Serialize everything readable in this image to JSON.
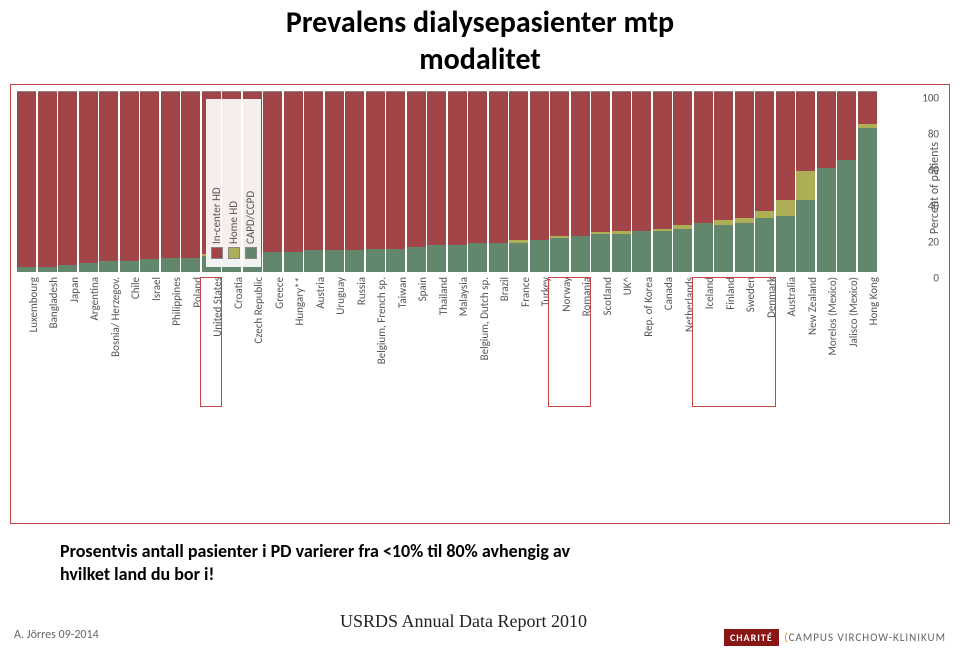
{
  "title_line1": "Prevalens dialysepasienter mtp",
  "title_line2": "modalitet",
  "caption_line1": "Prosentvis antall pasienter i PD varierer fra <10% til 80% avhengig av",
  "caption_line2": "hvilket land du bor i!",
  "source": "USRDS Annual Data Report 2010",
  "author": "A. Jörres 09-2014",
  "logo_charite": "CHARITÉ",
  "logo_campus": "CAMPUS",
  "logo_virchow": "VIRCHOW-KLINIKUM",
  "colors": {
    "in_center": "#a14548",
    "home_hd": "#aeae56",
    "capd": "#63876d",
    "bg": "#ffffff",
    "frame": "#c74646",
    "text": "#555555"
  },
  "legend": [
    {
      "key": "in_center",
      "label": "In-center HD"
    },
    {
      "key": "home_hd",
      "label": "Home HD"
    },
    {
      "key": "capd",
      "label": "CAPD/CCPD"
    }
  ],
  "yaxis": {
    "label": "Percent of patients",
    "min": 0,
    "max": 100,
    "ticks": [
      0,
      20,
      40,
      60,
      80,
      100
    ]
  },
  "countries": [
    {
      "name": "Luxembourg",
      "in_center": 97,
      "home_hd": 0,
      "capd": 3
    },
    {
      "name": "Bangladesh",
      "in_center": 97,
      "home_hd": 0,
      "capd": 3
    },
    {
      "name": "Japan",
      "in_center": 96,
      "home_hd": 0,
      "capd": 4
    },
    {
      "name": "Argentina",
      "in_center": 95,
      "home_hd": 0,
      "capd": 5
    },
    {
      "name": "Bosnia/ Herzegov.",
      "in_center": 94,
      "home_hd": 0,
      "capd": 6
    },
    {
      "name": "Chile",
      "in_center": 94,
      "home_hd": 0,
      "capd": 6
    },
    {
      "name": "Israel",
      "in_center": 93,
      "home_hd": 0,
      "capd": 7
    },
    {
      "name": "Philippines",
      "in_center": 92,
      "home_hd": 0,
      "capd": 8
    },
    {
      "name": "Poland",
      "in_center": 92,
      "home_hd": 0,
      "capd": 8
    },
    {
      "name": "United States",
      "in_center": 90,
      "home_hd": 1,
      "capd": 9
    },
    {
      "name": "Croatia",
      "in_center": 90,
      "home_hd": 0,
      "capd": 10
    },
    {
      "name": "Czech Republic",
      "in_center": 90,
      "home_hd": 0,
      "capd": 10
    },
    {
      "name": "Greece",
      "in_center": 89,
      "home_hd": 0,
      "capd": 11
    },
    {
      "name": "Hungary**",
      "in_center": 89,
      "home_hd": 0,
      "capd": 11
    },
    {
      "name": "Austria",
      "in_center": 88,
      "home_hd": 0,
      "capd": 12
    },
    {
      "name": "Uruguay",
      "in_center": 88,
      "home_hd": 0,
      "capd": 12
    },
    {
      "name": "Russia",
      "in_center": 88,
      "home_hd": 0,
      "capd": 12
    },
    {
      "name": "Belgium, French sp.",
      "in_center": 87,
      "home_hd": 0,
      "capd": 13
    },
    {
      "name": "Taiwan",
      "in_center": 87,
      "home_hd": 0,
      "capd": 13
    },
    {
      "name": "Spain",
      "in_center": 86,
      "home_hd": 0,
      "capd": 14
    },
    {
      "name": "Thailand",
      "in_center": 85,
      "home_hd": 0,
      "capd": 15
    },
    {
      "name": "Malaysia",
      "in_center": 85,
      "home_hd": 0,
      "capd": 15
    },
    {
      "name": "Belgium, Dutch sp.",
      "in_center": 84,
      "home_hd": 0,
      "capd": 16
    },
    {
      "name": "Brazil",
      "in_center": 84,
      "home_hd": 0,
      "capd": 16
    },
    {
      "name": "France",
      "in_center": 82,
      "home_hd": 2,
      "capd": 16
    },
    {
      "name": "Turkey",
      "in_center": 82,
      "home_hd": 0,
      "capd": 18
    },
    {
      "name": "Norway",
      "in_center": 80,
      "home_hd": 1,
      "capd": 19
    },
    {
      "name": "Romania",
      "in_center": 80,
      "home_hd": 0,
      "capd": 20
    },
    {
      "name": "Scotland",
      "in_center": 78,
      "home_hd": 1,
      "capd": 21
    },
    {
      "name": "UK^",
      "in_center": 77,
      "home_hd": 2,
      "capd": 21
    },
    {
      "name": "Rep. of Korea",
      "in_center": 77,
      "home_hd": 0,
      "capd": 23
    },
    {
      "name": "Canada",
      "in_center": 76,
      "home_hd": 1,
      "capd": 23
    },
    {
      "name": "Netherlands",
      "in_center": 74,
      "home_hd": 2,
      "capd": 24
    },
    {
      "name": "Iceland",
      "in_center": 73,
      "home_hd": 0,
      "capd": 27
    },
    {
      "name": "Finland",
      "in_center": 71,
      "home_hd": 3,
      "capd": 26
    },
    {
      "name": "Sweden",
      "in_center": 70,
      "home_hd": 3,
      "capd": 27
    },
    {
      "name": "Denmark",
      "in_center": 66,
      "home_hd": 4,
      "capd": 30
    },
    {
      "name": "Australia",
      "in_center": 60,
      "home_hd": 9,
      "capd": 31
    },
    {
      "name": "New Zealand",
      "in_center": 44,
      "home_hd": 16,
      "capd": 40
    },
    {
      "name": "Morelos (Mexico)",
      "in_center": 42,
      "home_hd": 0,
      "capd": 58
    },
    {
      "name": "Jalisco (Mexico)",
      "in_center": 38,
      "home_hd": 0,
      "capd": 62
    },
    {
      "name": "Hong Kong",
      "in_center": 18,
      "home_hd": 2,
      "capd": 80
    }
  ],
  "highlights": [
    {
      "start": 9,
      "end": 9
    },
    {
      "start": 26,
      "end": 27
    },
    {
      "start": 33,
      "end": 36
    }
  ]
}
